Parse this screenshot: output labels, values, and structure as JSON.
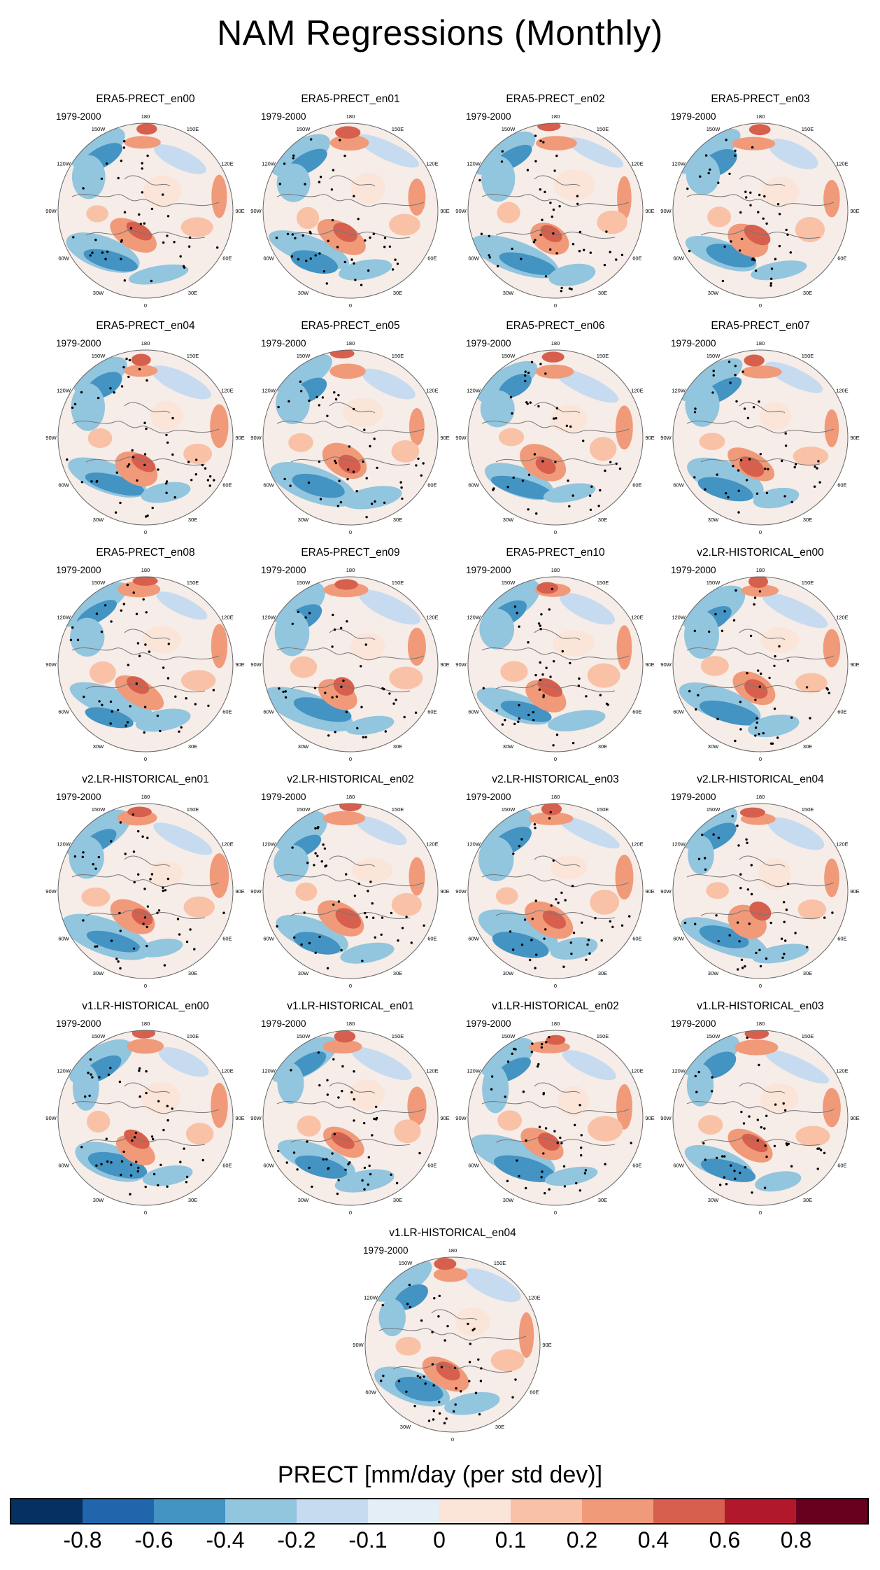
{
  "title": "NAM Regressions (Monthly)",
  "period": "1979-2000",
  "lon_labels": [
    "180",
    "150E",
    "120E",
    "90E",
    "60E",
    "30E",
    "0",
    "30W",
    "60W",
    "90W",
    "120W",
    "150W"
  ],
  "panels": [
    {
      "name": "ERA5-PRECT_en00"
    },
    {
      "name": "ERA5-PRECT_en01"
    },
    {
      "name": "ERA5-PRECT_en02"
    },
    {
      "name": "ERA5-PRECT_en03"
    },
    {
      "name": "ERA5-PRECT_en04"
    },
    {
      "name": "ERA5-PRECT_en05"
    },
    {
      "name": "ERA5-PRECT_en06"
    },
    {
      "name": "ERA5-PRECT_en07"
    },
    {
      "name": "ERA5-PRECT_en08"
    },
    {
      "name": "ERA5-PRECT_en09"
    },
    {
      "name": "ERA5-PRECT_en10"
    },
    {
      "name": "v2.LR-HISTORICAL_en00"
    },
    {
      "name": "v2.LR-HISTORICAL_en01"
    },
    {
      "name": "v2.LR-HISTORICAL_en02"
    },
    {
      "name": "v2.LR-HISTORICAL_en03"
    },
    {
      "name": "v2.LR-HISTORICAL_en04"
    },
    {
      "name": "v1.LR-HISTORICAL_en00"
    },
    {
      "name": "v1.LR-HISTORICAL_en01"
    },
    {
      "name": "v1.LR-HISTORICAL_en02"
    },
    {
      "name": "v1.LR-HISTORICAL_en03"
    },
    {
      "name": "v1.LR-HISTORICAL_en04"
    }
  ],
  "colorbar": {
    "title": "PRECT [mm/day (per std dev)]",
    "labels": [
      "-0.8",
      "-0.6",
      "-0.4",
      "-0.2",
      "-0.1",
      "0",
      "0.1",
      "0.2",
      "0.4",
      "0.6",
      "0.8"
    ],
    "colors": [
      "#053061",
      "#2166ac",
      "#4393c3",
      "#92c5de",
      "#c6dbef",
      "#e3eef6",
      "#fbe4d8",
      "#f9c1a6",
      "#f09a79",
      "#d6604d",
      "#b2182b",
      "#67001f"
    ]
  },
  "chart_data": {
    "type": "heatmap",
    "title": "NAM Regressions (Monthly)",
    "projection": "north-polar-stereographic",
    "variable": "PRECT",
    "units": "mm/day (per std dev)",
    "levels": [
      -0.8,
      -0.6,
      -0.4,
      -0.2,
      -0.1,
      0,
      0.1,
      0.2,
      0.4,
      0.6,
      0.8
    ],
    "panel_count": 21,
    "stippling": "statistically significant regions"
  }
}
